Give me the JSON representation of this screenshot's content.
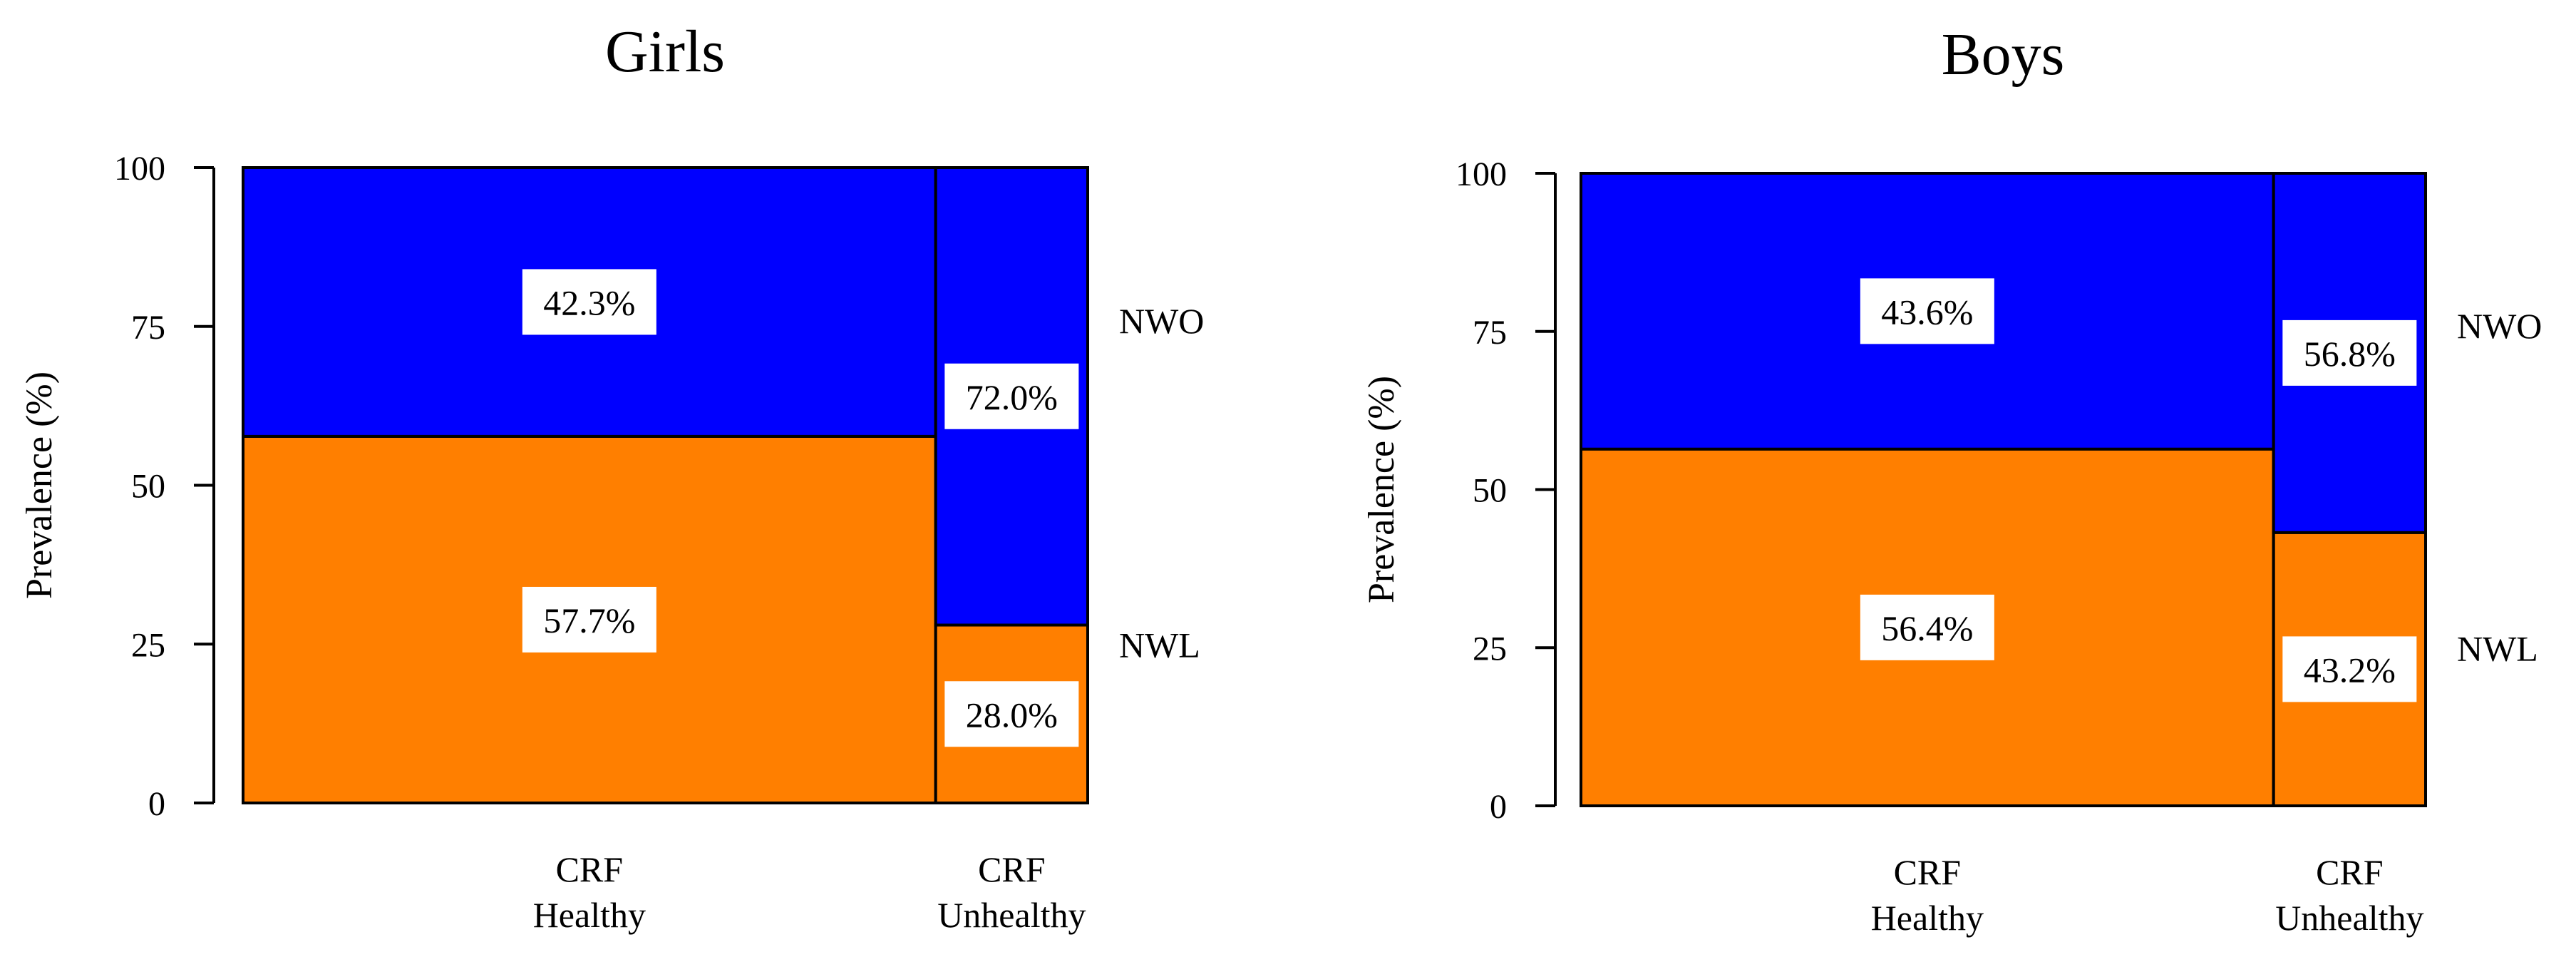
{
  "chart_data": [
    {
      "type": "mosaic",
      "title": "Girls",
      "ylabel": "Prevalence (%)",
      "xlabel": "",
      "ylim": [
        0,
        100
      ],
      "yticks": [
        "0",
        "25",
        "50",
        "75",
        "100"
      ],
      "ytick_values": [
        0,
        25,
        50,
        75,
        100
      ],
      "grid": false,
      "columns": [
        {
          "category": [
            "CRF",
            "Healthy"
          ],
          "width_share": 0.82,
          "segments": [
            {
              "series": "NWL",
              "value": 57.7,
              "label": "57.7%"
            },
            {
              "series": "NWO",
              "value": 42.3,
              "label": "42.3%"
            }
          ]
        },
        {
          "category": [
            "CRF",
            "Unhealthy"
          ],
          "width_share": 0.18,
          "segments": [
            {
              "series": "NWL",
              "value": 28.0,
              "label": "28.0%"
            },
            {
              "series": "NWO",
              "value": 72.0,
              "label": "72.0%"
            }
          ]
        }
      ],
      "series_labels": [
        "NWO",
        "NWL"
      ]
    },
    {
      "type": "mosaic",
      "title": "Boys",
      "ylabel": "Prevalence (%)",
      "xlabel": "",
      "ylim": [
        0,
        100
      ],
      "yticks": [
        "0",
        "25",
        "50",
        "75",
        "100"
      ],
      "ytick_values": [
        0,
        25,
        50,
        75,
        100
      ],
      "grid": false,
      "columns": [
        {
          "category": [
            "CRF",
            "Healthy"
          ],
          "width_share": 0.82,
          "segments": [
            {
              "series": "NWL",
              "value": 56.4,
              "label": "56.4%"
            },
            {
              "series": "NWO",
              "value": 43.6,
              "label": "43.6%"
            }
          ]
        },
        {
          "category": [
            "CRF",
            "Unhealthy"
          ],
          "width_share": 0.18,
          "segments": [
            {
              "series": "NWL",
              "value": 43.2,
              "label": "43.2%"
            },
            {
              "series": "NWO",
              "value": 56.8,
              "label": "56.8%"
            }
          ]
        }
      ],
      "series_labels": [
        "NWO",
        "NWL"
      ]
    }
  ],
  "colors": {
    "NWO": "#0000ff",
    "NWL": "#ff7f00",
    "axis": "#000000",
    "label_box": "#ffffff"
  }
}
